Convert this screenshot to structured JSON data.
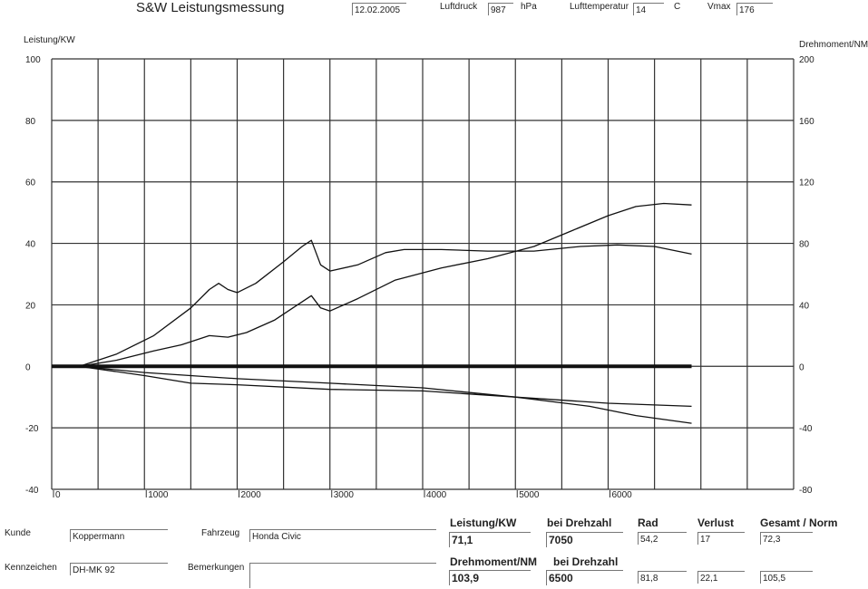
{
  "header": {
    "title": "S&W Leistungsmessung",
    "date": "12.02.2005",
    "luftdruck_label": "Luftdruck",
    "luftdruck_value": "987",
    "luftdruck_unit": "hPa",
    "lufttemp_label": "Lufttemperatur",
    "lufttemp_value": "14",
    "lufttemp_unit": "C",
    "vmax_label": "Vmax",
    "vmax_value": "176"
  },
  "chart_data": {
    "type": "line",
    "ylabel_left": "Leistung/KW",
    "ylabel_right": "Drehmoment/NM",
    "xlim": [
      0,
      8000
    ],
    "ylim_left": [
      -40,
      100
    ],
    "ylim_right": [
      -80,
      200
    ],
    "x_ticks": [
      "0",
      "1000",
      "2000",
      "3000",
      "4000",
      "5000",
      "6000"
    ],
    "y_ticks_left": [
      "100",
      "80",
      "60",
      "40",
      "20",
      "0",
      "-20",
      "-40"
    ],
    "y_ticks_right": [
      "200",
      "160",
      "120",
      "80",
      "40",
      "0",
      "-40",
      "-80"
    ],
    "grid": true,
    "series": [
      {
        "axis": "left",
        "x": [
          300,
          700,
          1100,
          1500,
          1700,
          1800,
          1900,
          2000,
          2200,
          2500,
          2700,
          2800,
          2900,
          3000,
          3300,
          3600,
          3800,
          4200,
          4700,
          5200,
          5700,
          6100,
          6500,
          6900
        ],
        "values": [
          0,
          4,
          10,
          19,
          25,
          27,
          25,
          24,
          27,
          34,
          39,
          41,
          33,
          31,
          33,
          37,
          38,
          38,
          37.5,
          37.5,
          39,
          39.5,
          39,
          36.5
        ]
      },
      {
        "axis": "left",
        "x": [
          300,
          700,
          1100,
          1400,
          1700,
          1900,
          2100,
          2400,
          2600,
          2800,
          2900,
          3000,
          3300,
          3700,
          4200,
          4700,
          5200,
          5600,
          6000,
          6300,
          6600,
          6900
        ],
        "values": [
          0,
          2,
          5,
          7,
          10,
          9.5,
          11,
          15,
          19,
          23,
          19,
          18,
          22,
          28,
          32,
          35,
          39,
          44,
          49,
          52,
          53,
          52.5
        ]
      },
      {
        "axis": "left",
        "x": [
          0,
          6900
        ],
        "values": [
          0,
          0
        ],
        "emphasis": true
      },
      {
        "axis": "left",
        "x": [
          300,
          1000,
          1500,
          2000,
          3000,
          4000,
          5000,
          6000,
          6900
        ],
        "values": [
          0,
          -3,
          -5.5,
          -6,
          -7.5,
          -8,
          -10,
          -12,
          -13
        ]
      },
      {
        "axis": "left",
        "x": [
          300,
          1000,
          2000,
          3000,
          4000,
          5000,
          5800,
          6300,
          6900
        ],
        "values": [
          0,
          -2,
          -4,
          -5.5,
          -7,
          -10,
          -13,
          -16,
          -18.5
        ]
      }
    ]
  },
  "footer": {
    "kunde_label": "Kunde",
    "kunde_value": "Koppermann",
    "fahrzeug_label": "Fahrzeug",
    "fahrzeug_value": "Honda Civic",
    "kennzeichen_label": "Kennzeichen",
    "kennzeichen_value": "DH-MK 92",
    "bemerkungen_label": "Bemerkungen",
    "leistung_label": "Leistung/KW",
    "leistung_value": "71,1",
    "bei_drehzahl_label_1": "bei Drehzahl",
    "drehzahl_value_1": "7050",
    "rad_label": "Rad",
    "rad_value_1": "54,2",
    "verlust_label": "Verlust",
    "verlust_value_1": "17",
    "gesamt_label": "Gesamt / Norm",
    "gesamt_value_1": "72,3",
    "drehmoment_label": "Drehmoment/NM",
    "drehmoment_value": "103,9",
    "bei_drehzahl_label_2": "bei Drehzahl",
    "drehzahl_value_2": "6500",
    "rad_value_2": "81,8",
    "verlust_value_2": "22,1",
    "gesamt_value_2": "105,5"
  }
}
